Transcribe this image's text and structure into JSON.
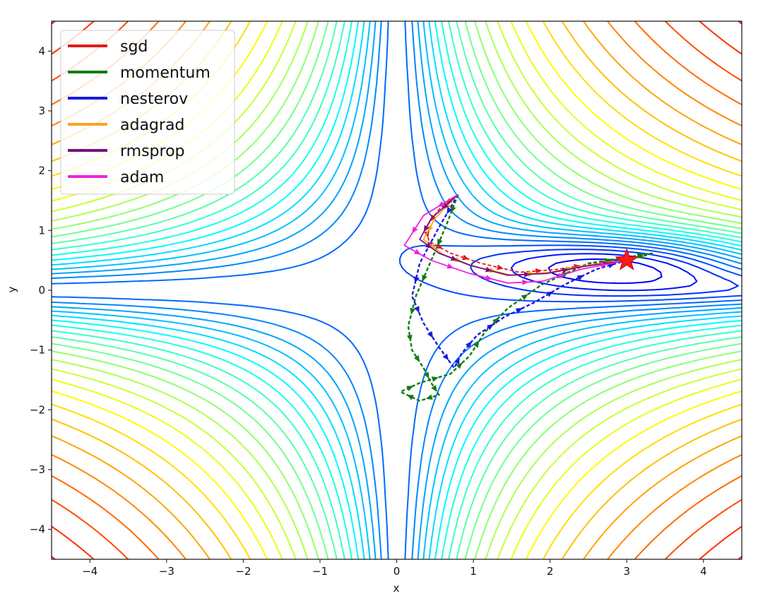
{
  "chart_data": {
    "type": "line",
    "subtype": "contour-with-optimizer-trajectories",
    "title": "",
    "xlabel": "x",
    "ylabel": "y",
    "xlim": [
      -4.5,
      4.5
    ],
    "ylim": [
      -4.5,
      4.5
    ],
    "xticks": [
      "−4",
      "−3",
      "−2",
      "−1",
      "0",
      "1",
      "2",
      "3",
      "4"
    ],
    "yticks": [
      "4",
      "3",
      "2",
      "1",
      "0",
      "−1",
      "−2",
      "−3",
      "−4"
    ],
    "grid": false,
    "legend_position": "top-left",
    "colormap": "jet",
    "start_point": {
      "x": 0.8,
      "y": 1.6
    },
    "minimum_marker": {
      "x": 3.0,
      "y": 0.5,
      "symbol": "star",
      "color": "#ff1a1a"
    },
    "series": [
      {
        "name": "sgd",
        "color": "#e41a1c",
        "points": [
          [
            0.8,
            1.6
          ],
          [
            0.55,
            1.35
          ],
          [
            0.38,
            1.05
          ],
          [
            0.42,
            0.82
          ],
          [
            0.7,
            0.62
          ],
          [
            1.1,
            0.45
          ],
          [
            1.6,
            0.3
          ],
          [
            2.1,
            0.35
          ],
          [
            2.6,
            0.45
          ],
          [
            3.0,
            0.5
          ]
        ]
      },
      {
        "name": "momentum",
        "color": "#137a13",
        "points": [
          [
            0.8,
            1.6
          ],
          [
            0.65,
            1.1
          ],
          [
            0.45,
            0.5
          ],
          [
            0.25,
            -0.1
          ],
          [
            0.15,
            -0.6
          ],
          [
            0.2,
            -1.0
          ],
          [
            0.35,
            -1.3
          ],
          [
            0.45,
            -1.55
          ],
          [
            0.55,
            -1.75
          ],
          [
            0.3,
            -1.85
          ],
          [
            0.05,
            -1.7
          ],
          [
            0.3,
            -1.55
          ],
          [
            0.7,
            -1.4
          ],
          [
            0.95,
            -1.1
          ],
          [
            1.15,
            -0.7
          ],
          [
            1.45,
            -0.3
          ],
          [
            1.9,
            0.1
          ],
          [
            2.5,
            0.45
          ],
          [
            3.0,
            0.55
          ],
          [
            3.35,
            0.62
          ],
          [
            3.0,
            0.5
          ]
        ]
      },
      {
        "name": "nesterov",
        "color": "#1a1adc",
        "points": [
          [
            0.8,
            1.6
          ],
          [
            0.55,
            1.05
          ],
          [
            0.3,
            0.45
          ],
          [
            0.2,
            -0.1
          ],
          [
            0.35,
            -0.55
          ],
          [
            0.55,
            -0.95
          ],
          [
            0.75,
            -1.3
          ],
          [
            0.85,
            -1.05
          ],
          [
            1.05,
            -0.75
          ],
          [
            1.4,
            -0.45
          ],
          [
            1.8,
            -0.2
          ],
          [
            2.2,
            0.1
          ],
          [
            2.6,
            0.35
          ],
          [
            3.0,
            0.5
          ]
        ]
      },
      {
        "name": "adagrad",
        "color": "#f5a623",
        "points": [
          [
            0.8,
            1.6
          ],
          [
            0.5,
            1.2
          ],
          [
            0.35,
            0.85
          ],
          [
            0.6,
            0.6
          ],
          [
            1.0,
            0.4
          ],
          [
            1.5,
            0.25
          ],
          [
            2.0,
            0.3
          ],
          [
            2.5,
            0.42
          ],
          [
            2.95,
            0.5
          ]
        ]
      },
      {
        "name": "rmsprop",
        "color": "#7b0d80",
        "points": [
          [
            0.8,
            1.6
          ],
          [
            0.45,
            1.2
          ],
          [
            0.3,
            0.85
          ],
          [
            0.55,
            0.62
          ],
          [
            0.95,
            0.42
          ],
          [
            1.45,
            0.25
          ],
          [
            1.95,
            0.28
          ],
          [
            2.45,
            0.4
          ],
          [
            3.0,
            0.5
          ]
        ]
      },
      {
        "name": "adam",
        "color": "#ee22dd",
        "points": [
          [
            0.8,
            1.6
          ],
          [
            0.35,
            1.25
          ],
          [
            0.1,
            0.75
          ],
          [
            0.45,
            0.5
          ],
          [
            0.95,
            0.28
          ],
          [
            1.45,
            0.12
          ],
          [
            1.9,
            0.15
          ],
          [
            2.4,
            0.35
          ],
          [
            3.0,
            0.5
          ]
        ]
      }
    ]
  }
}
